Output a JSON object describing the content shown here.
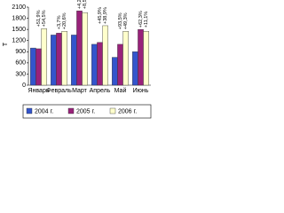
{
  "chart_data": {
    "type": "bar",
    "y_label": "Т",
    "categories": [
      "Январь",
      "Февраль",
      "Март",
      "Апрель",
      "Май",
      "Июнь"
    ],
    "series": [
      {
        "name": "2004 г.",
        "color": "#3355cc",
        "values": [
          1000,
          1350,
          1350,
          1100,
          750,
          900
        ]
      },
      {
        "name": "2005 г.",
        "color": "#99227a",
        "values": [
          980,
          1400,
          2000,
          1150,
          1100,
          1500
        ]
      },
      {
        "name": "2006 г.",
        "color": "#ffffcc",
        "values": [
          1520,
          1450,
          1950,
          1600,
          1450,
          1450
        ]
      }
    ],
    "change_labels": [
      [
        "+51,9%",
        "+54,5%"
      ],
      [
        "+3,7%",
        "+20,6%"
      ],
      [
        "+4,2%",
        "+8,5%"
      ],
      [
        "+45,9%",
        "+38,9%"
      ],
      [
        "+93,5%",
        "+49,3%"
      ],
      [
        "+62,3%",
        "+11,1%"
      ]
    ],
    "ylim": [
      0,
      2100
    ],
    "yticks": [
      0,
      300,
      600,
      900,
      1200,
      1500,
      1800,
      2100
    ],
    "grid": false
  }
}
